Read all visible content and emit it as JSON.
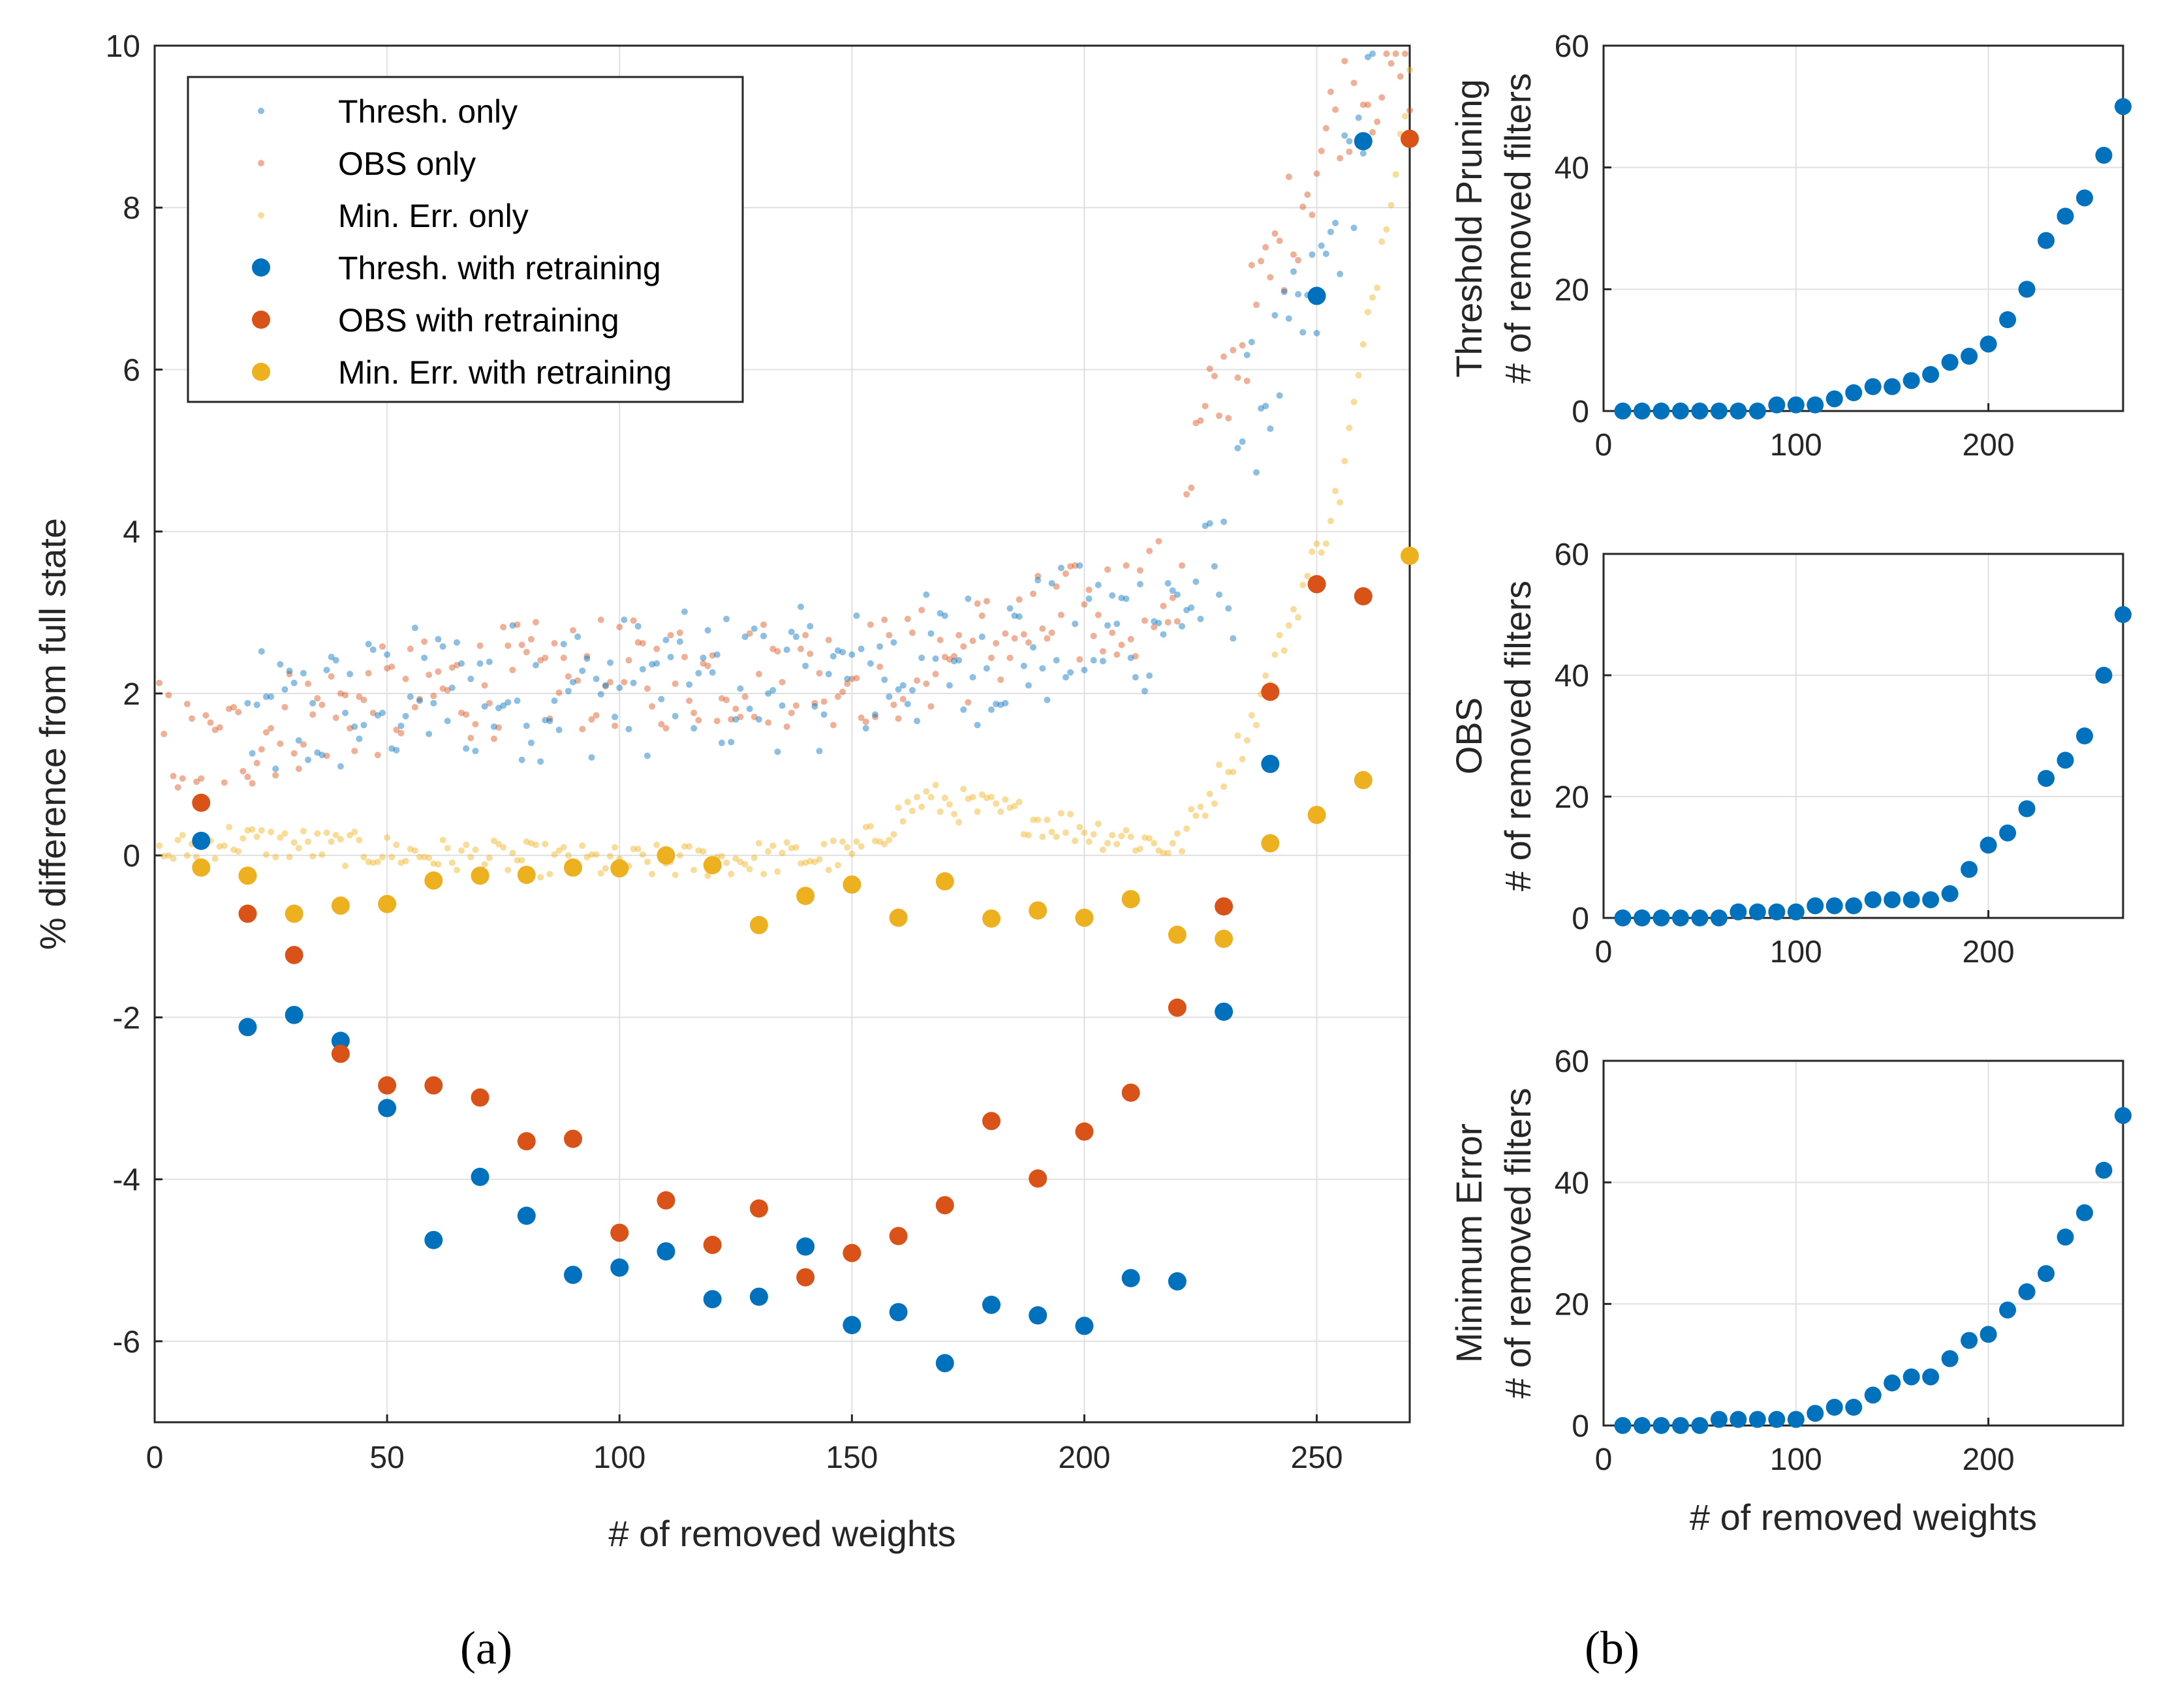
{
  "chart_data": [
    {
      "id": "a",
      "panel_label": "(a)",
      "type": "scatter",
      "xlabel": "# of removed weights",
      "ylabel": "% difference from full state",
      "xlim": [
        0,
        270
      ],
      "ylim": [
        -7,
        10
      ],
      "xticks": [
        0,
        50,
        100,
        150,
        200,
        250
      ],
      "yticks": [
        -6,
        -4,
        -2,
        0,
        2,
        4,
        6,
        8,
        10
      ],
      "grid": true,
      "legend_position": "top-left",
      "series": [
        {
          "name": "Thresh. only",
          "color": "#0072BD",
          "style": "small-faded",
          "x": [],
          "y": []
        },
        {
          "name": "OBS only",
          "color": "#D95319",
          "style": "small-faded",
          "x": [],
          "y": []
        },
        {
          "name": "Min. Err. only",
          "color": "#EDB120",
          "style": "small-faded",
          "x": [],
          "y": []
        },
        {
          "name": "Thresh. with retraining",
          "color": "#0072BD",
          "style": "large",
          "x": [
            10,
            20,
            30,
            40,
            50,
            60,
            70,
            80,
            90,
            100,
            110,
            120,
            130,
            140,
            150,
            160,
            170,
            180,
            190,
            200,
            210,
            220,
            230,
            240,
            250,
            260
          ],
          "y": [
            0.18,
            -2.12,
            -1.97,
            -2.29,
            -3.12,
            -4.75,
            -3.97,
            -4.45,
            -5.18,
            -5.09,
            -4.89,
            -5.48,
            -5.45,
            -4.83,
            -5.8,
            -5.64,
            -6.27,
            -5.55,
            -5.68,
            -5.81,
            -5.22,
            -5.26,
            -1.93,
            1.13,
            6.91,
            8.82
          ]
        },
        {
          "name": "OBS with retraining",
          "color": "#D95319",
          "style": "large",
          "x": [
            10,
            20,
            30,
            40,
            50,
            60,
            70,
            80,
            90,
            100,
            110,
            120,
            130,
            140,
            150,
            160,
            170,
            180,
            190,
            200,
            210,
            220,
            230,
            240,
            250,
            260,
            270
          ],
          "y": [
            0.65,
            -0.72,
            -1.23,
            -2.45,
            -2.84,
            -2.84,
            -2.99,
            -3.53,
            -3.5,
            -4.66,
            -4.26,
            -4.81,
            -4.36,
            -5.21,
            -4.91,
            -4.7,
            -4.32,
            -3.28,
            -3.99,
            -3.41,
            -2.93,
            -1.88,
            -0.63,
            2.02,
            3.35,
            3.2,
            8.85
          ]
        },
        {
          "name": "Min. Err. with retraining",
          "color": "#EDB120",
          "style": "large",
          "x": [
            10,
            20,
            30,
            40,
            50,
            60,
            70,
            80,
            90,
            100,
            110,
            120,
            130,
            140,
            150,
            160,
            170,
            180,
            190,
            200,
            210,
            220,
            230,
            240,
            250,
            260,
            270
          ],
          "y": [
            -0.15,
            -0.25,
            -0.72,
            -0.62,
            -0.6,
            -0.31,
            -0.25,
            -0.24,
            -0.15,
            -0.16,
            0.0,
            -0.12,
            -0.86,
            -0.5,
            -0.36,
            -0.77,
            -0.32,
            -0.78,
            -0.68,
            -0.77,
            -0.54,
            -0.98,
            -1.03,
            0.15,
            0.5,
            0.93,
            3.7
          ]
        }
      ]
    },
    {
      "id": "b1",
      "panel_label": "(b)",
      "type": "scatter",
      "xlabel": "",
      "ylabel": [
        "Threshold Pruning",
        "# of removed filters"
      ],
      "xlim": [
        0,
        270
      ],
      "ylim": [
        0,
        60
      ],
      "xticks": [
        0,
        100,
        200
      ],
      "yticks": [
        0,
        20,
        40,
        60
      ],
      "grid": true,
      "series": [
        {
          "name": "Threshold Pruning",
          "color": "#0072BD",
          "x": [
            10,
            20,
            30,
            40,
            50,
            60,
            70,
            80,
            90,
            100,
            110,
            120,
            130,
            140,
            150,
            160,
            170,
            180,
            190,
            200,
            210,
            220,
            230,
            240,
            250,
            260,
            270
          ],
          "y": [
            0,
            0,
            0,
            0,
            0,
            0,
            0,
            0,
            1,
            1,
            1,
            2,
            3,
            4,
            4,
            5,
            6,
            8,
            9,
            11,
            15,
            20,
            28,
            32,
            35,
            42,
            50
          ]
        }
      ]
    },
    {
      "id": "b2",
      "type": "scatter",
      "xlabel": "",
      "ylabel": [
        "OBS",
        "# of removed filters"
      ],
      "xlim": [
        0,
        270
      ],
      "ylim": [
        0,
        60
      ],
      "xticks": [
        0,
        100,
        200
      ],
      "yticks": [
        0,
        20,
        40,
        60
      ],
      "grid": true,
      "series": [
        {
          "name": "OBS",
          "color": "#0072BD",
          "x": [
            10,
            20,
            30,
            40,
            50,
            60,
            70,
            80,
            90,
            100,
            110,
            120,
            130,
            140,
            150,
            160,
            170,
            180,
            190,
            200,
            210,
            220,
            230,
            240,
            250,
            260,
            270
          ],
          "y": [
            0,
            0,
            0,
            0,
            0,
            0,
            1,
            1,
            1,
            1,
            2,
            2,
            2,
            3,
            3,
            3,
            3,
            4,
            8,
            12,
            14,
            18,
            23,
            26,
            30,
            40,
            50
          ]
        }
      ]
    },
    {
      "id": "b3",
      "type": "scatter",
      "xlabel": "# of removed weights",
      "ylabel": [
        "Minimum Error",
        "# of removed filters"
      ],
      "xlim": [
        0,
        270
      ],
      "ylim": [
        0,
        60
      ],
      "xticks": [
        0,
        100,
        200
      ],
      "yticks": [
        0,
        20,
        40,
        60
      ],
      "grid": true,
      "series": [
        {
          "name": "Minimum Error",
          "color": "#0072BD",
          "x": [
            10,
            20,
            30,
            40,
            50,
            60,
            70,
            80,
            90,
            100,
            110,
            120,
            130,
            140,
            150,
            160,
            170,
            180,
            190,
            200,
            210,
            220,
            230,
            240,
            250,
            260,
            270
          ],
          "y": [
            0,
            0,
            0,
            0,
            0,
            1,
            1,
            1,
            1,
            1,
            2,
            3,
            3,
            5,
            7,
            8,
            8,
            11,
            14,
            15,
            19,
            22,
            25,
            31,
            35,
            42,
            51
          ]
        }
      ]
    }
  ]
}
